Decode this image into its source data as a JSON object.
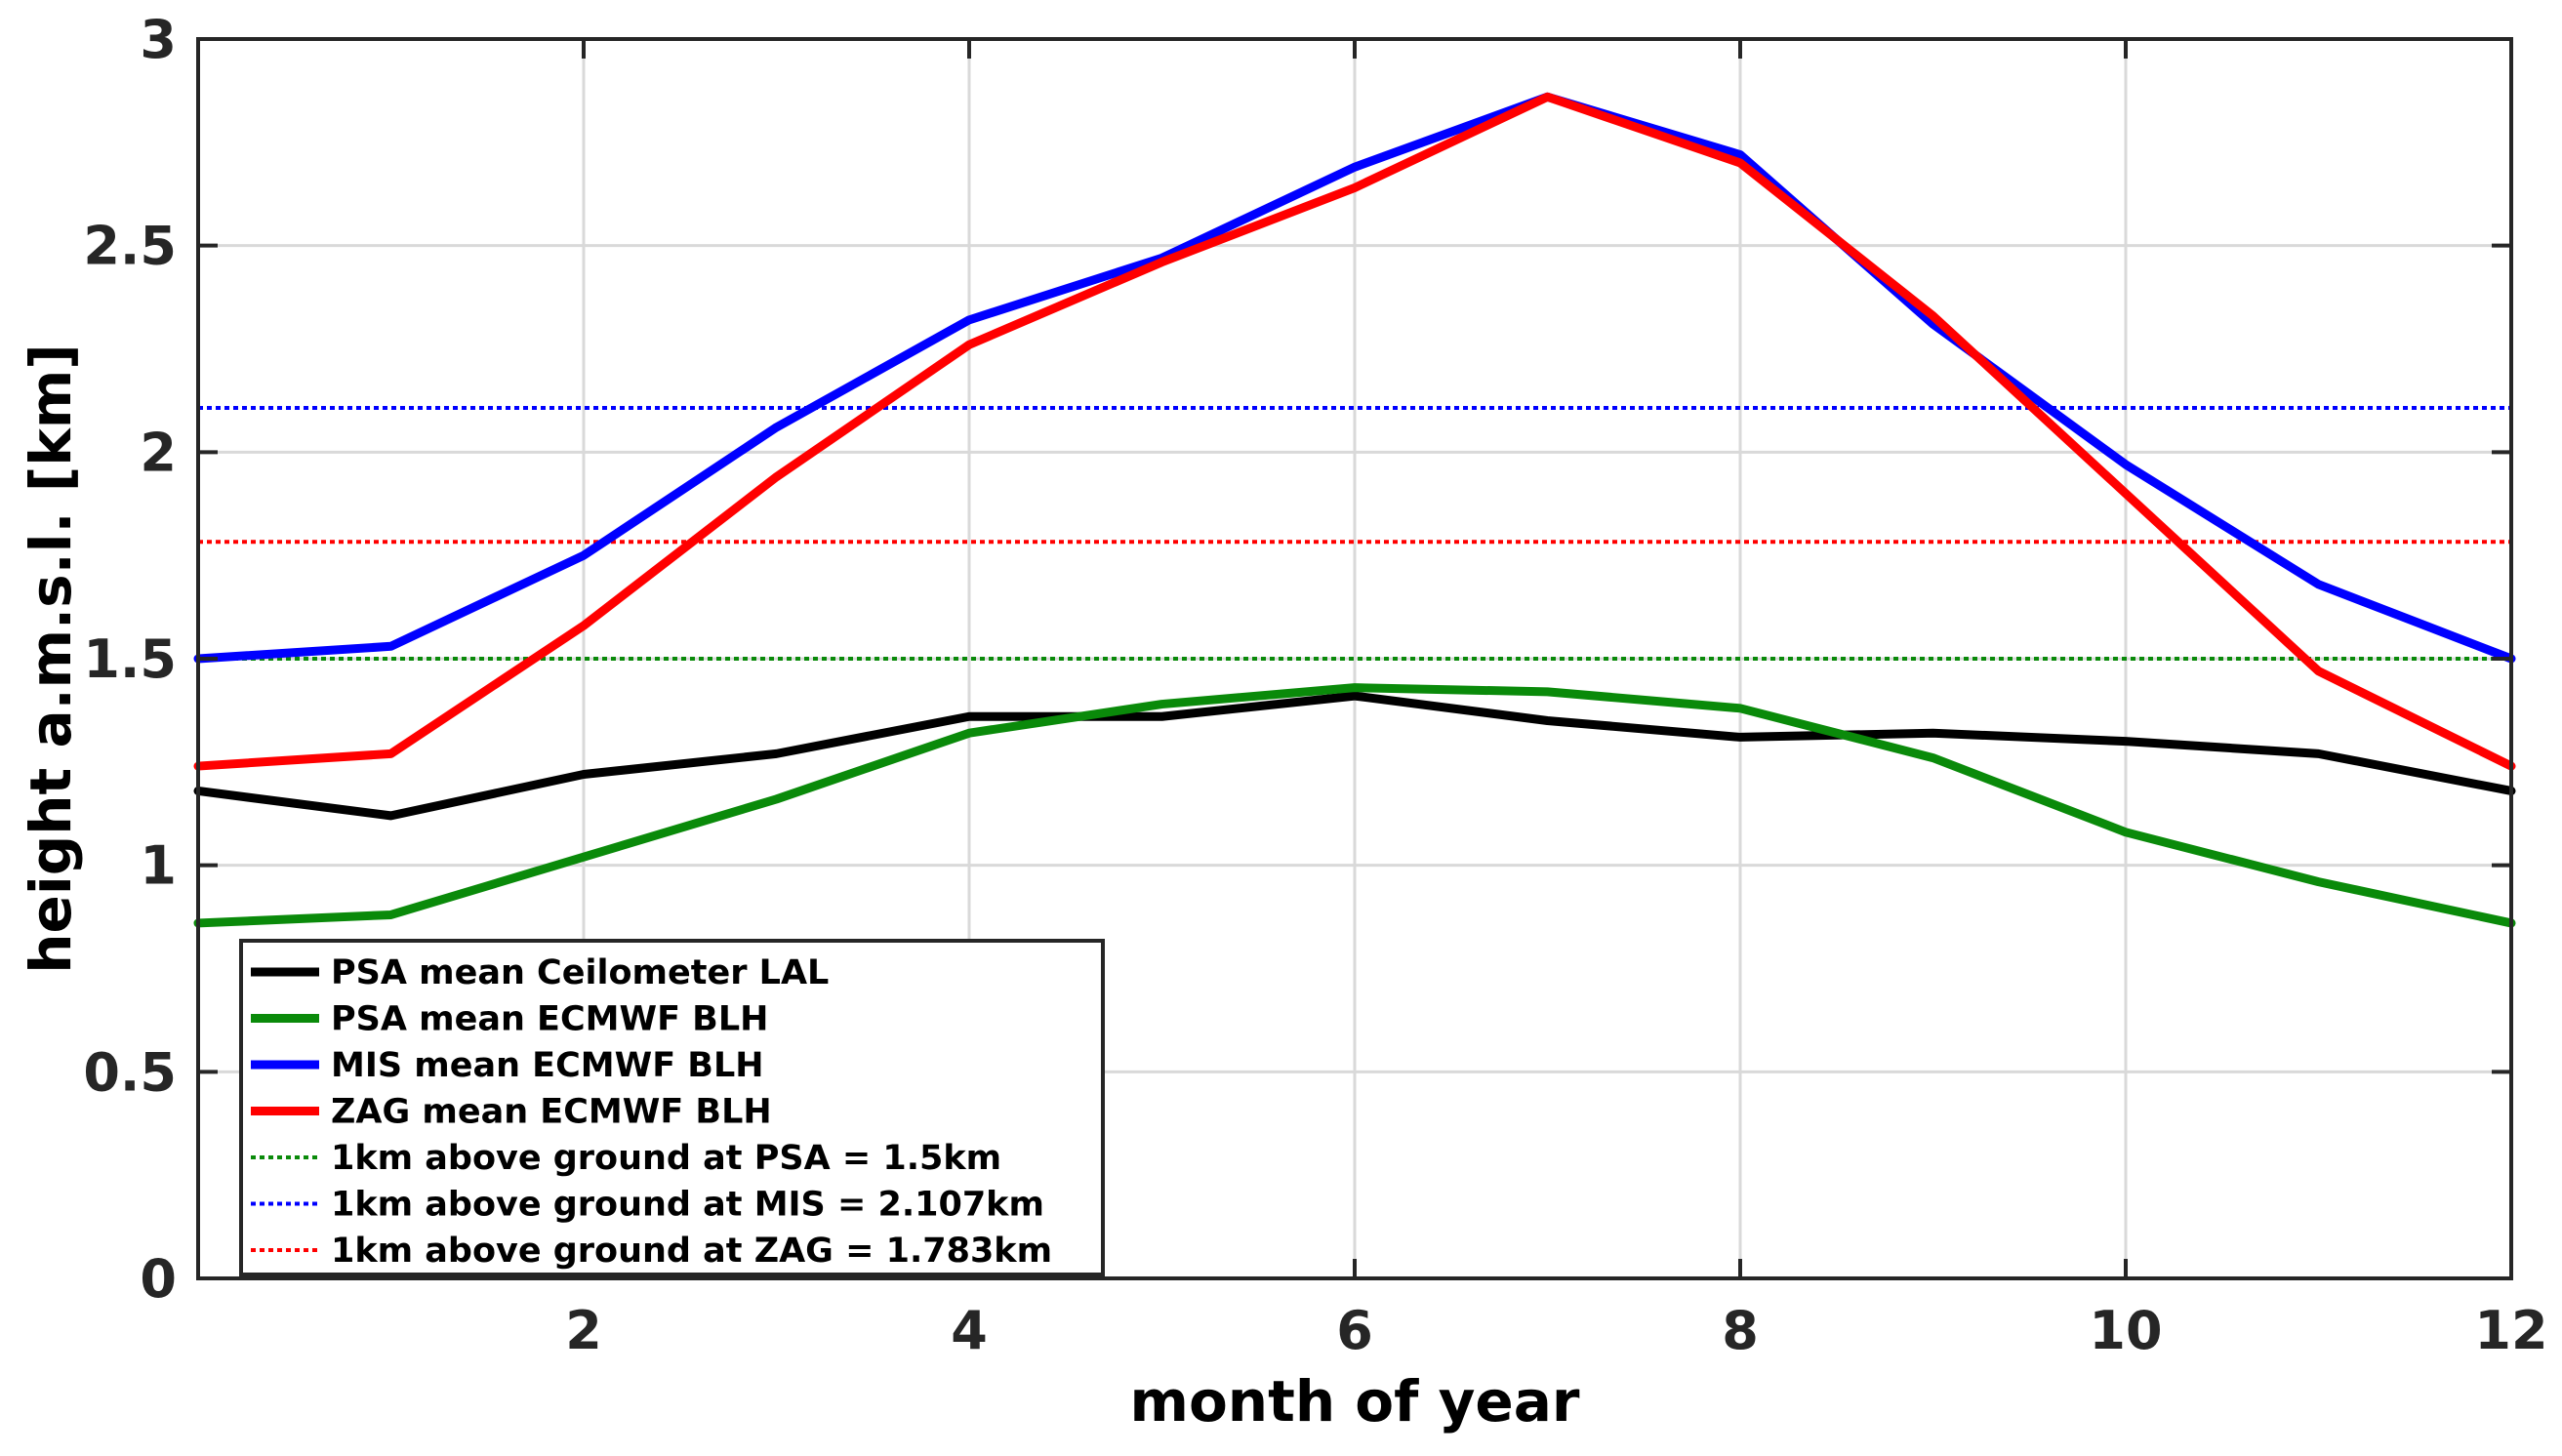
{
  "chart_data": {
    "type": "line",
    "title": "",
    "xlabel": "month of year",
    "ylabel": "height a.m.s.l. [km]",
    "xlim": [
      0,
      12
    ],
    "ylim": [
      0,
      3
    ],
    "xticks": [
      2,
      4,
      6,
      8,
      10,
      12
    ],
    "xtick_labels": [
      "2",
      "4",
      "6",
      "8",
      "10",
      "12"
    ],
    "yticks": [
      0,
      0.5,
      1,
      1.5,
      2,
      2.5,
      3
    ],
    "ytick_labels": [
      "0",
      "0.5",
      "1",
      "1.5",
      "2",
      "2.5",
      "3"
    ],
    "grid": true,
    "legend_position": "bottom-left",
    "x": [
      0,
      1,
      2,
      3,
      4,
      5,
      6,
      7,
      8,
      9,
      10,
      11,
      12
    ],
    "series": [
      {
        "name": "PSA mean Ceilometer LAL",
        "color": "#000000",
        "style": "solid",
        "values": [
          1.18,
          1.12,
          1.22,
          1.27,
          1.36,
          1.36,
          1.41,
          1.35,
          1.31,
          1.32,
          1.3,
          1.27,
          1.18
        ]
      },
      {
        "name": "PSA mean ECMWF BLH",
        "color": "#0a8a0a",
        "style": "solid",
        "values": [
          0.86,
          0.88,
          1.02,
          1.16,
          1.32,
          1.39,
          1.43,
          1.42,
          1.38,
          1.26,
          1.08,
          0.96,
          0.86
        ]
      },
      {
        "name": "MIS mean ECMWF BLH",
        "color": "#0000ff",
        "style": "solid",
        "values": [
          1.5,
          1.53,
          1.75,
          2.06,
          2.32,
          2.47,
          2.69,
          2.86,
          2.72,
          2.31,
          1.97,
          1.68,
          1.5
        ]
      },
      {
        "name": "ZAG mean ECMWF BLH",
        "color": "#ff0000",
        "style": "solid",
        "values": [
          1.24,
          1.27,
          1.58,
          1.94,
          2.26,
          2.46,
          2.64,
          2.86,
          2.7,
          2.33,
          1.9,
          1.47,
          1.24
        ]
      },
      {
        "name": "1km above ground at PSA = 1.5km",
        "color": "#0a8a0a",
        "style": "dotted",
        "constant": 1.5
      },
      {
        "name": "1km above ground at MIS = 2.107km",
        "color": "#0000ff",
        "style": "dotted",
        "constant": 2.107
      },
      {
        "name": "1km above ground at ZAG = 1.783km",
        "color": "#ff0000",
        "style": "dotted",
        "constant": 1.783
      }
    ]
  }
}
